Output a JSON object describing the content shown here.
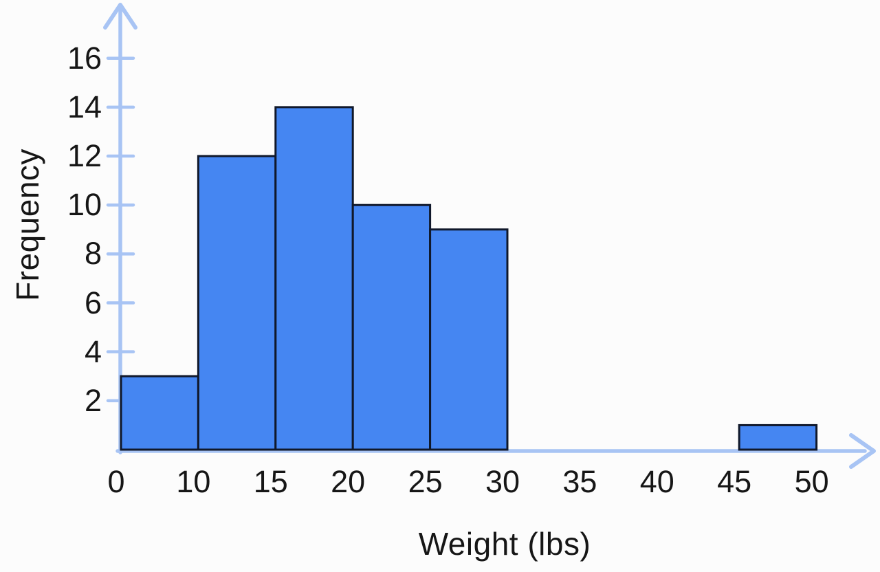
{
  "chart_data": {
    "type": "bar",
    "subtype": "histogram",
    "title": "",
    "xlabel": "Weight (lbs)",
    "ylabel": "Frequency",
    "x_ticks": [
      0,
      10,
      15,
      20,
      25,
      30,
      35,
      40,
      45,
      50
    ],
    "y_ticks": [
      2,
      4,
      6,
      8,
      10,
      12,
      14,
      16
    ],
    "ylim": [
      0,
      17
    ],
    "bins": [
      {
        "from": 0,
        "to": 10,
        "count": 3
      },
      {
        "from": 10,
        "to": 15,
        "count": 12
      },
      {
        "from": 15,
        "to": 20,
        "count": 14
      },
      {
        "from": 20,
        "to": 25,
        "count": 10
      },
      {
        "from": 25,
        "to": 30,
        "count": 9
      },
      {
        "from": 30,
        "to": 35,
        "count": 0
      },
      {
        "from": 35,
        "to": 40,
        "count": 0
      },
      {
        "from": 40,
        "to": 45,
        "count": 0
      },
      {
        "from": 45,
        "to": 50,
        "count": 1
      }
    ],
    "layout_hints": {
      "grid": false,
      "legend": false,
      "x_ticks_evenly_spaced": true,
      "axis_arrows": [
        "up",
        "right"
      ]
    },
    "colors": {
      "bar_fill": "#4586f2",
      "bar_border": "#10182a",
      "axis": "#a8c4f4",
      "text": "#161616",
      "background": "#fcfcfc"
    }
  }
}
